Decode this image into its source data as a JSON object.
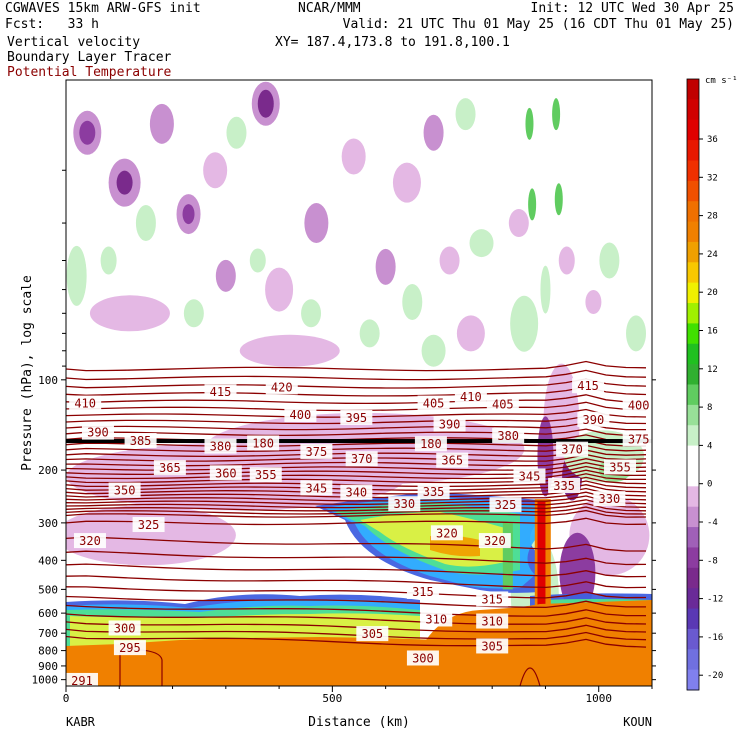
{
  "header": {
    "left_line1": "CGWAVES 15km ARW-GFS init",
    "center_line1": "NCAR/MMM",
    "right_line1": "Init: 12 UTC Wed 30 Apr 25",
    "left_line2": "Fcst:   33 h",
    "right_line2": "Valid: 21 UTC Thu 01 May 25 (16 CDT Thu 01 May 25)",
    "field1": "Vertical velocity",
    "field2": "Boundary Layer Tracer",
    "field3": "Potential Temperature",
    "xy": "XY= 187.4,173.8 to 191.8,100.1"
  },
  "colors": {
    "potential_temperature": "#8b0000",
    "terrain": "#f08000",
    "pbl_contour": "#000000"
  },
  "chart_data": {
    "type": "heatmap",
    "title": "Vertical velocity",
    "xlabel": "Distance (km)",
    "ylabel": "Pressure (hPa), log scale",
    "xlim": [
      0,
      1100
    ],
    "ylim": [
      1050,
      10
    ],
    "y_scale": "log",
    "xticks": [
      0,
      500,
      1000
    ],
    "yticks": [
      100,
      200,
      300,
      400,
      500,
      600,
      700,
      800,
      900,
      1000
    ],
    "endpoints": {
      "left": "KABR",
      "right": "KOUN"
    },
    "colorbar": {
      "unit": "cm s⁻¹",
      "levels": [
        -22,
        -20,
        -18,
        -16,
        -14,
        -12,
        -10,
        -8,
        -6,
        -4,
        -2,
        0,
        2,
        4,
        6,
        8,
        10,
        12,
        14,
        16,
        18,
        20,
        22,
        24,
        26,
        28,
        30,
        32,
        34,
        36,
        38,
        40
      ],
      "tick_labels": [
        "36",
        "32",
        "28",
        "24",
        "20",
        "16",
        "12",
        "8",
        "4",
        "0",
        "-4",
        "-8",
        "-12",
        "-16",
        "-20"
      ],
      "colors": [
        "#8080ee",
        "#7070e0",
        "#6a5ad0",
        "#5a38b4",
        "#6a2a98",
        "#7a2a8c",
        "#8c3ca0",
        "#a060b8",
        "#c890d0",
        "#e4b8e4",
        "#ffffff",
        "#ffffff",
        "#c8f0c8",
        "#98e098",
        "#60cc60",
        "#30b030",
        "#20c020",
        "#40e000",
        "#a0f000",
        "#f0f000",
        "#f8c800",
        "#f0a000",
        "#f08000",
        "#f07000",
        "#f05000",
        "#f03000",
        "#e81800",
        "#e00000",
        "#d00000",
        "#c00000"
      ]
    },
    "theta_labels": [
      {
        "value": "410",
        "x": 36,
        "p": 120
      },
      {
        "value": "420",
        "x": 405,
        "p": 106
      },
      {
        "value": "415",
        "x": 290,
        "p": 110
      },
      {
        "value": "400",
        "x": 440,
        "p": 131
      },
      {
        "value": "395",
        "x": 545,
        "p": 134
      },
      {
        "value": "405",
        "x": 690,
        "p": 120
      },
      {
        "value": "410",
        "x": 760,
        "p": 114
      },
      {
        "value": "405",
        "x": 820,
        "p": 121
      },
      {
        "value": "415",
        "x": 980,
        "p": 105
      },
      {
        "value": "400",
        "x": 1075,
        "p": 122
      },
      {
        "value": "390",
        "x": 60,
        "p": 150
      },
      {
        "value": "385",
        "x": 140,
        "p": 160
      },
      {
        "value": "380",
        "x": 290,
        "p": 167
      },
      {
        "value": "180",
        "x": 370,
        "p": 163
      },
      {
        "value": "375",
        "x": 470,
        "p": 174
      },
      {
        "value": "370",
        "x": 555,
        "p": 184
      },
      {
        "value": "390",
        "x": 720,
        "p": 141
      },
      {
        "value": "180",
        "x": 685,
        "p": 164
      },
      {
        "value": "380",
        "x": 830,
        "p": 154
      },
      {
        "value": "390",
        "x": 990,
        "p": 136
      },
      {
        "value": "375",
        "x": 1075,
        "p": 158
      },
      {
        "value": "370",
        "x": 950,
        "p": 171
      },
      {
        "value": "365",
        "x": 195,
        "p": 197
      },
      {
        "value": "360",
        "x": 300,
        "p": 205
      },
      {
        "value": "355",
        "x": 375,
        "p": 208
      },
      {
        "value": "365",
        "x": 725,
        "p": 186
      },
      {
        "value": "345",
        "x": 470,
        "p": 230
      },
      {
        "value": "340",
        "x": 545,
        "p": 238
      },
      {
        "value": "335",
        "x": 690,
        "p": 237
      },
      {
        "value": "350",
        "x": 110,
        "p": 234
      },
      {
        "value": "345",
        "x": 870,
        "p": 210
      },
      {
        "value": "335",
        "x": 935,
        "p": 226
      },
      {
        "value": "355",
        "x": 1040,
        "p": 196
      },
      {
        "value": "330",
        "x": 1020,
        "p": 250
      },
      {
        "value": "330",
        "x": 635,
        "p": 260
      },
      {
        "value": "325",
        "x": 825,
        "p": 262
      },
      {
        "value": "325",
        "x": 155,
        "p": 305
      },
      {
        "value": "320",
        "x": 45,
        "p": 345
      },
      {
        "value": "320",
        "x": 715,
        "p": 325
      },
      {
        "value": "320",
        "x": 805,
        "p": 345
      },
      {
        "value": "315",
        "x": 670,
        "p": 510
      },
      {
        "value": "315",
        "x": 800,
        "p": 540
      },
      {
        "value": "310",
        "x": 695,
        "p": 630
      },
      {
        "value": "310",
        "x": 800,
        "p": 640
      },
      {
        "value": "305",
        "x": 575,
        "p": 705
      },
      {
        "value": "305",
        "x": 800,
        "p": 775
      },
      {
        "value": "300",
        "x": 110,
        "p": 675
      },
      {
        "value": "300",
        "x": 670,
        "p": 850
      },
      {
        "value": "295",
        "x": 120,
        "p": 785
      },
      {
        "value": "291",
        "x": 30,
        "p": 1010
      }
    ]
  }
}
